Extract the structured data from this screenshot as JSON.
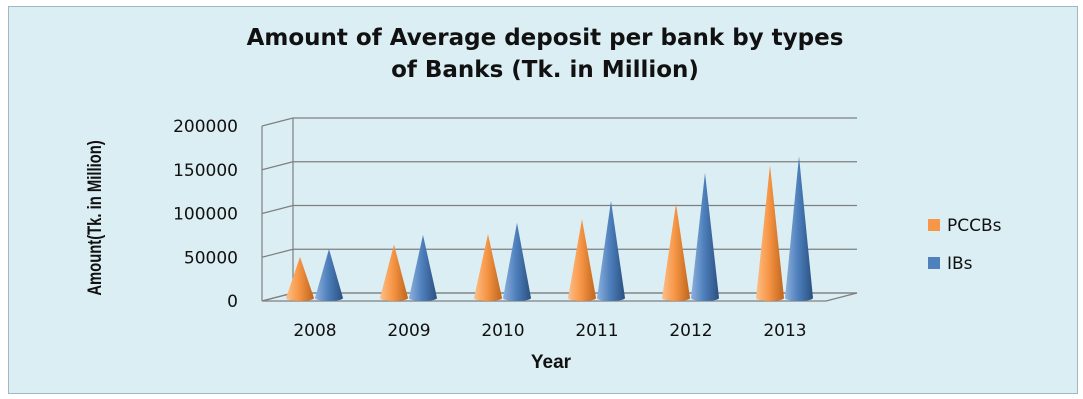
{
  "chart_data": {
    "type": "bar",
    "title_line1": "Amount of Average deposit per bank by types",
    "title_line2": "of Banks (Tk. in Million)",
    "xlabel": "Year",
    "ylabel": "Amount(Tk. in Million)",
    "categories": [
      "2008",
      "2009",
      "2010",
      "2011",
      "2012",
      "2013"
    ],
    "series": [
      {
        "name": "PCCBs",
        "values": [
          47000,
          61000,
          73000,
          90000,
          108000,
          152000
        ],
        "color": "#f79646"
      },
      {
        "name": "IBs",
        "values": [
          56000,
          72000,
          86000,
          111000,
          143000,
          162000
        ],
        "color": "#4f81bd"
      }
    ],
    "ylim": [
      0,
      200000
    ],
    "yticks": [
      "0",
      "50000",
      "100000",
      "150000",
      "200000"
    ],
    "legend_position": "right",
    "grid": true,
    "shape": "cone"
  }
}
